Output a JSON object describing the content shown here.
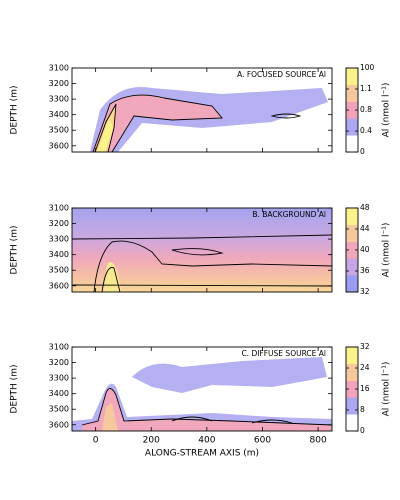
{
  "chart_data": [
    {
      "type": "contour",
      "title": "A. FOCUSED SOURCE Al",
      "ylabel": "DEPTH (m)",
      "xlim": [
        -85,
        850
      ],
      "xticks": [
        0,
        200,
        400,
        600,
        800
      ],
      "show_xtick_labels": false,
      "ylim": [
        3640,
        3100
      ],
      "yticks": [
        3100,
        3200,
        3300,
        3400,
        3500,
        3600
      ],
      "colorbar": {
        "label": "Al (nmol l⁻¹)",
        "ticks": [
          0,
          0.4,
          0.8,
          1.1,
          100
        ],
        "colors": [
          "#ffffff",
          "#aaa8f0",
          "#f0a3bb",
          "#f6c89e",
          "#fcf28c"
        ]
      }
    },
    {
      "type": "contour",
      "title": "B. BACKGROUND Al",
      "ylabel": "DEPTH (m)",
      "xlim": [
        -85,
        850
      ],
      "xticks": [
        0,
        200,
        400,
        600,
        800
      ],
      "show_xtick_labels": false,
      "ylim": [
        3640,
        3100
      ],
      "yticks": [
        3100,
        3200,
        3300,
        3400,
        3500,
        3600
      ],
      "colorbar": {
        "label": "Al (nmol l⁻¹)",
        "ticks": [
          32,
          36,
          40,
          44,
          48
        ],
        "colors": [
          "#9c9cf0",
          "#c6a6e4",
          "#f0a6bb",
          "#f6c89e",
          "#fcf28c"
        ]
      }
    },
    {
      "type": "contour",
      "title": "C. DIFFUSE SOURCE Al",
      "ylabel": "DEPTH (m)",
      "xlabel": "ALONG-STREAM AXIS (m)",
      "xlim": [
        -85,
        850
      ],
      "xticks": [
        0,
        200,
        400,
        600,
        800
      ],
      "show_xtick_labels": true,
      "ylim": [
        3640,
        3100
      ],
      "yticks": [
        3100,
        3200,
        3300,
        3400,
        3500,
        3600
      ],
      "colorbar": {
        "label": "Al (nmol l⁻¹)",
        "ticks": [
          0,
          8,
          16,
          24,
          32
        ],
        "colors": [
          "#ffffff",
          "#aaa8f0",
          "#f0a3bb",
          "#f6c89e",
          "#fcf28c"
        ]
      }
    }
  ]
}
